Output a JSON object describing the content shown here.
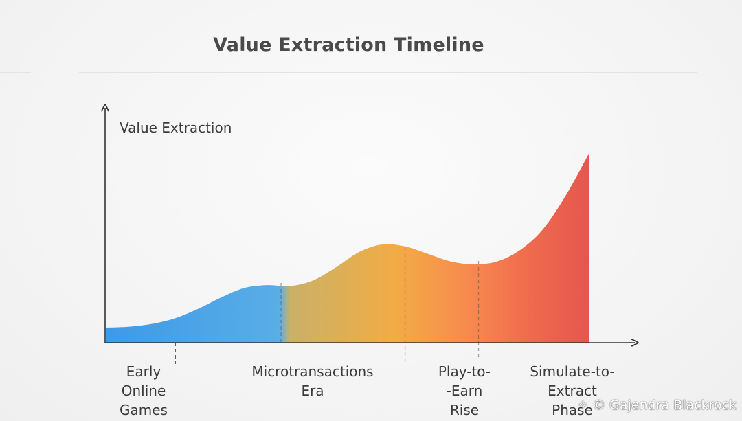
{
  "chart_data": {
    "type": "area",
    "title": "Value Extraction Timeline",
    "ylabel": "Value Extraction",
    "xlabel": "",
    "x": [
      0,
      1,
      2,
      3,
      4,
      5,
      6,
      7,
      8,
      9,
      10,
      11,
      12,
      13,
      14,
      15,
      16,
      17,
      18,
      19,
      20,
      21,
      22,
      23,
      24,
      25,
      26,
      27,
      28
    ],
    "values": [
      0.08,
      0.085,
      0.1,
      0.13,
      0.18,
      0.24,
      0.29,
      0.305,
      0.3,
      0.33,
      0.4,
      0.48,
      0.52,
      0.51,
      0.47,
      0.43,
      0.415,
      0.43,
      0.49,
      0.6,
      0.78,
      1.0,
      null,
      null,
      null,
      null,
      null,
      null,
      null
    ],
    "ylim": [
      0,
      1
    ],
    "grid": false,
    "legend": "none",
    "colors": [
      "#3d9ae8",
      "#5aaee6",
      "#c9b167",
      "#f2ac45",
      "#f78a4f",
      "#ef6a4e",
      "#e4574f"
    ],
    "phases": [
      {
        "label": "Early\nOnline\nGames",
        "boundary": 3.0
      },
      {
        "label": "Microtransactions\nEra",
        "boundary": 7.6
      },
      {
        "label": "Play-to-\n-Earn\nRise",
        "boundary": 13.0
      },
      {
        "label": "Simulate-to-\nExtract\nPhase",
        "boundary": 16.2
      }
    ]
  },
  "watermark": "© Gajendra Blackrock"
}
